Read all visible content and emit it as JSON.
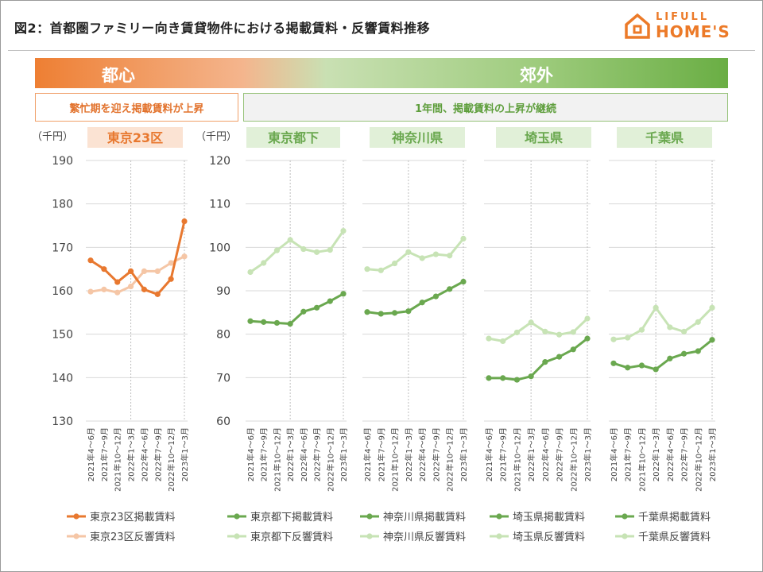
{
  "title": "図2：首都圏ファミリー向き賃貸物件における掲載賃料・反響賃料推移",
  "logo": {
    "line1": "LIFULL",
    "line2": "HOME'S"
  },
  "band": {
    "left_label": "都心",
    "right_label": "郊外"
  },
  "notes": {
    "left": "繁忙期を迎え掲載賃料が上昇",
    "right": "1年間、掲載賃料の上昇が継続"
  },
  "colors": {
    "orange_dark": "#e8782f",
    "orange_light": "#f5c6a6",
    "green_dark": "#6aa84f",
    "green_light": "#c7e3b5",
    "orange_tag_bg": "#fbe3d3",
    "green_tag_bg": "#e1f0d8"
  },
  "chart_data": {
    "type": "line",
    "categories": [
      "2021年4〜6月",
      "2021年7〜9月",
      "2021年10〜12月",
      "2022年1〜3月",
      "2022年4〜6月",
      "2022年7〜9月",
      "2022年10〜12月",
      "2023年1〜3月"
    ],
    "unit_label": "（千円）",
    "axes": [
      {
        "name": "left",
        "ylim": [
          130,
          190
        ],
        "ticks": [
          130,
          140,
          150,
          160,
          170,
          180,
          190
        ]
      },
      {
        "name": "right",
        "ylim": [
          60,
          120
        ],
        "ticks": [
          60,
          70,
          80,
          90,
          100,
          110,
          120
        ]
      }
    ],
    "panels": [
      {
        "region": "東京23区",
        "axis": "left",
        "theme": "orange",
        "series": [
          {
            "name": "東京23区掲載賃料",
            "kind": "listing",
            "values": [
              167.0,
              165.0,
              162.0,
              164.5,
              160.3,
              159.2,
              162.7,
              176.0
            ]
          },
          {
            "name": "東京23区反響賃料",
            "kind": "response",
            "values": [
              159.8,
              160.3,
              159.6,
              161.0,
              164.5,
              164.5,
              166.4,
              167.9
            ]
          }
        ]
      },
      {
        "region": "東京都下",
        "axis": "right",
        "theme": "green",
        "series": [
          {
            "name": "東京都下掲載賃料",
            "kind": "listing",
            "values": [
              83.0,
              82.8,
              82.6,
              82.4,
              85.2,
              86.1,
              87.6,
              89.3
            ]
          },
          {
            "name": "東京都下反響賃料",
            "kind": "response",
            "values": [
              94.3,
              96.4,
              99.3,
              101.7,
              99.6,
              98.9,
              99.4,
              103.8
            ]
          }
        ]
      },
      {
        "region": "神奈川県",
        "axis": "right",
        "theme": "green",
        "series": [
          {
            "name": "神奈川県掲載賃料",
            "kind": "listing",
            "values": [
              85.1,
              84.7,
              84.9,
              85.3,
              87.3,
              88.7,
              90.4,
              92.1
            ]
          },
          {
            "name": "神奈川県反響賃料",
            "kind": "response",
            "values": [
              95.0,
              94.7,
              96.3,
              98.9,
              97.5,
              98.4,
              98.1,
              102.0
            ]
          }
        ]
      },
      {
        "region": "埼玉県",
        "axis": "right",
        "theme": "green",
        "series": [
          {
            "name": "埼玉県掲載賃料",
            "kind": "listing",
            "values": [
              69.9,
              69.9,
              69.5,
              70.3,
              73.6,
              74.8,
              76.5,
              79.0
            ]
          },
          {
            "name": "埼玉県反響賃料",
            "kind": "response",
            "values": [
              79.0,
              78.4,
              80.4,
              82.7,
              80.6,
              79.9,
              80.5,
              83.6
            ]
          }
        ]
      },
      {
        "region": "千葉県",
        "axis": "right",
        "theme": "green",
        "series": [
          {
            "name": "千葉県掲載賃料",
            "kind": "listing",
            "values": [
              73.3,
              72.3,
              72.8,
              71.9,
              74.4,
              75.5,
              76.1,
              78.7
            ]
          },
          {
            "name": "千葉県反響賃料",
            "kind": "response",
            "values": [
              78.8,
              79.2,
              81.0,
              86.1,
              81.6,
              80.6,
              82.8,
              86.1
            ]
          }
        ]
      }
    ]
  }
}
